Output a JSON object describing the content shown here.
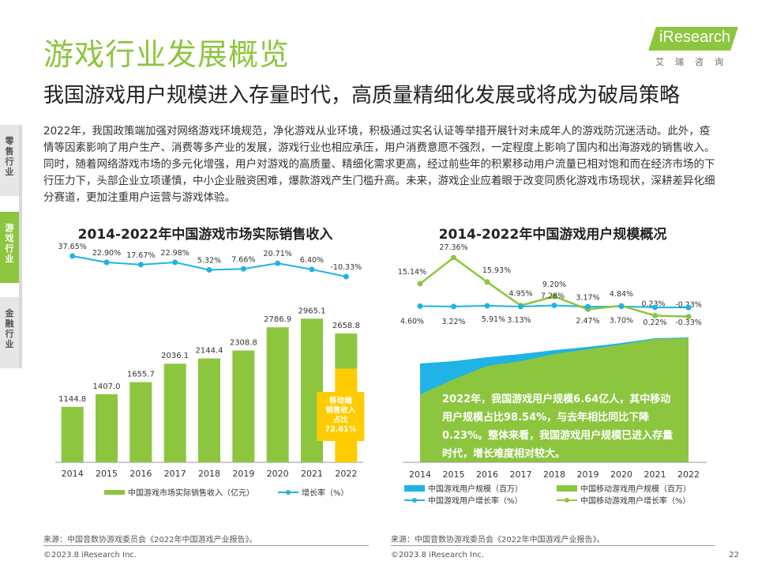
{
  "header": {
    "title": "游戏行业发展概览",
    "subtitle": "我国游戏用户规模进入存量时代，高质量精细化发展或将成为破局策略"
  },
  "logo": {
    "text": "iResearch",
    "cn": "艾瑞咨询"
  },
  "sidebar": {
    "items": [
      {
        "label": "零售行业",
        "active": false
      },
      {
        "label": "游戏行业",
        "active": true
      },
      {
        "label": "金融行业",
        "active": false
      }
    ]
  },
  "body_text": "2022年，我国政策端加强对网络游戏环境规范，净化游戏从业环境，积极通过实名认证等举措开展针对未成年人的游戏防沉迷活动。此外，疫情等因素影响了用户生产、消费等多产业的发展，游戏行业也相应承压，用户消费意愿不强烈，一定程度上影响了国内和出海游戏的销售收入。同时，随着网络游戏市场的多元化增强，用户对游戏的高质量、精细化需求更高，经过前些年的积累移动用户流量已相对饱和而在经济市场的下行压力下，头部企业立项谨慎，中小企业融资困难，爆款游戏产生门槛升高。未来，游戏企业应着眼于改变同质化游戏市场现状，深耕差异化细分赛道，更加注重用户运营与游戏体验。",
  "chart_data": [
    {
      "type": "bar",
      "title": "2014-2022年中国游戏市场实际销售收入",
      "categories": [
        "2014",
        "2015",
        "2016",
        "2017",
        "2018",
        "2019",
        "2020",
        "2021",
        "2022"
      ],
      "series": [
        {
          "name": "中国游戏市场实际销售收入（亿元）",
          "values": [
            1144.8,
            1407.0,
            1655.7,
            2036.1,
            2144.4,
            2308.8,
            2786.9,
            2965.1,
            2658.8
          ],
          "labels": [
            "1144.8",
            "1407.0",
            "1655.7",
            "2036.1",
            "2144.4",
            "2308.8",
            "2786.9",
            "2965.1",
            "2658.8"
          ],
          "color": "#8cc63f",
          "highlight_color": "#ffcc00"
        },
        {
          "name": "增长率（%）",
          "type": "line",
          "values": [
            37.65,
            22.9,
            17.67,
            22.98,
            5.32,
            7.66,
            20.71,
            6.4,
            -10.33
          ],
          "labels": [
            "37.65%",
            "22.90%",
            "17.67%",
            "22.98%",
            "5.32%",
            "7.66%",
            "20.71%",
            "6.40%",
            "-10.33%"
          ],
          "color": "#1fb3e6"
        }
      ],
      "highlight": {
        "category": "2022",
        "share": 0.7261,
        "text": "移动端销售收入占比72.61%"
      }
    },
    {
      "type": "area",
      "title": "2014-2022年中国游戏用户规模概况",
      "categories": [
        "2014",
        "2015",
        "2016",
        "2017",
        "2018",
        "2019",
        "2020",
        "2021",
        "2022"
      ],
      "series": [
        {
          "name": "中国游戏用户规模（百万）",
          "type": "area",
          "color": "#1fb3e6"
        },
        {
          "name": "中国移动游戏用户规模（百万）",
          "type": "area",
          "color": "#8cc63f"
        },
        {
          "name": "中国游戏用户增长率（%）",
          "type": "line",
          "values": [
            4.6,
            3.22,
            5.91,
            3.13,
            7.28,
            2.47,
            3.7,
            0.22,
            -0.33
          ],
          "labels": [
            "4.60%",
            "3.22%",
            "5.91%",
            "3.13%",
            "7.28%",
            "2.47%",
            "3.70%",
            "0.22%",
            "-0.33%"
          ],
          "color": "#1fb3e6"
        },
        {
          "name": "中国移动游戏用户增长率（%）",
          "type": "line",
          "values": [
            15.14,
            27.36,
            15.93,
            4.95,
            9.2,
            3.17,
            4.84,
            0.23,
            -0.23
          ],
          "labels": [
            "15.14%",
            "27.36%",
            "15.93%",
            "4.95%",
            "9.20%",
            "3.17%",
            "4.84%",
            "0.23%",
            "-0.23%"
          ],
          "color": "#8cc63f"
        }
      ],
      "callout": "2022年，我国游戏用户规模6.64亿人，其中移动用户规模占比98.54%，与去年相比同比下降0.23%。整体来看，我国游戏用户规模已进入存量时代，增长难度相对较大。"
    }
  ],
  "footer": {
    "source_left": "来源：中国音数协游戏委员会《2022年中国游戏产业报告》。",
    "source_right": "来源：中国音数协游戏委员会《2022年中国游戏产业报告》。",
    "copyright_left": "©2023.8 iResearch Inc.",
    "copyright_right": "©2023.8 iResearch Inc.",
    "page": "22"
  }
}
